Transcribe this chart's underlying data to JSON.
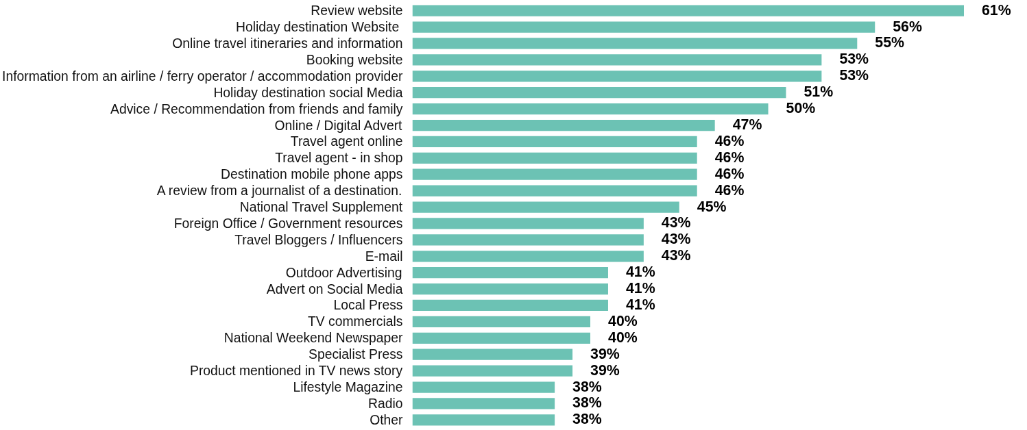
{
  "chart_data": {
    "type": "bar",
    "orientation": "horizontal",
    "categories": [
      "Review website",
      "Holiday destination  Website",
      "Online travel itineraries and information",
      "Booking website",
      "Information from an airline / ferry operator / accommodation provider",
      "Holiday destination social Media",
      "Advice / Recommendation from friends and family",
      "Online / Digital Advert",
      "Travel agent online",
      "Travel agent - in shop",
      "Destination mobile phone apps",
      "A review from a journalist of a destination.",
      "National Travel Supplement",
      "Foreign Office / Government resources",
      "Travel Bloggers / Influencers",
      "E-mail",
      "Outdoor Advertising",
      "Advert on Social Media",
      "Local Press",
      "TV commercials",
      "National Weekend Newspaper",
      "Specialist Press",
      "Product mentioned in TV news story",
      "Lifestyle Magazine",
      "Radio",
      "Other"
    ],
    "values": [
      61,
      56,
      55,
      53,
      53,
      51,
      50,
      47,
      46,
      46,
      46,
      46,
      45,
      43,
      43,
      43,
      41,
      41,
      41,
      40,
      40,
      39,
      39,
      38,
      38,
      38
    ],
    "value_labels": [
      "61%",
      "56%",
      "55%",
      "53%",
      "53%",
      "51%",
      "50%",
      "47%",
      "46%",
      "46%",
      "46%",
      "46%",
      "45%",
      "43%",
      "43%",
      "43%",
      "41%",
      "41%",
      "41%",
      "40%",
      "40%",
      "39%",
      "39%",
      "38%",
      "38%",
      "38%"
    ],
    "color": "#6cc2b4",
    "xlim": [
      30,
      61
    ],
    "tick_labels": "y",
    "grid": false
  }
}
